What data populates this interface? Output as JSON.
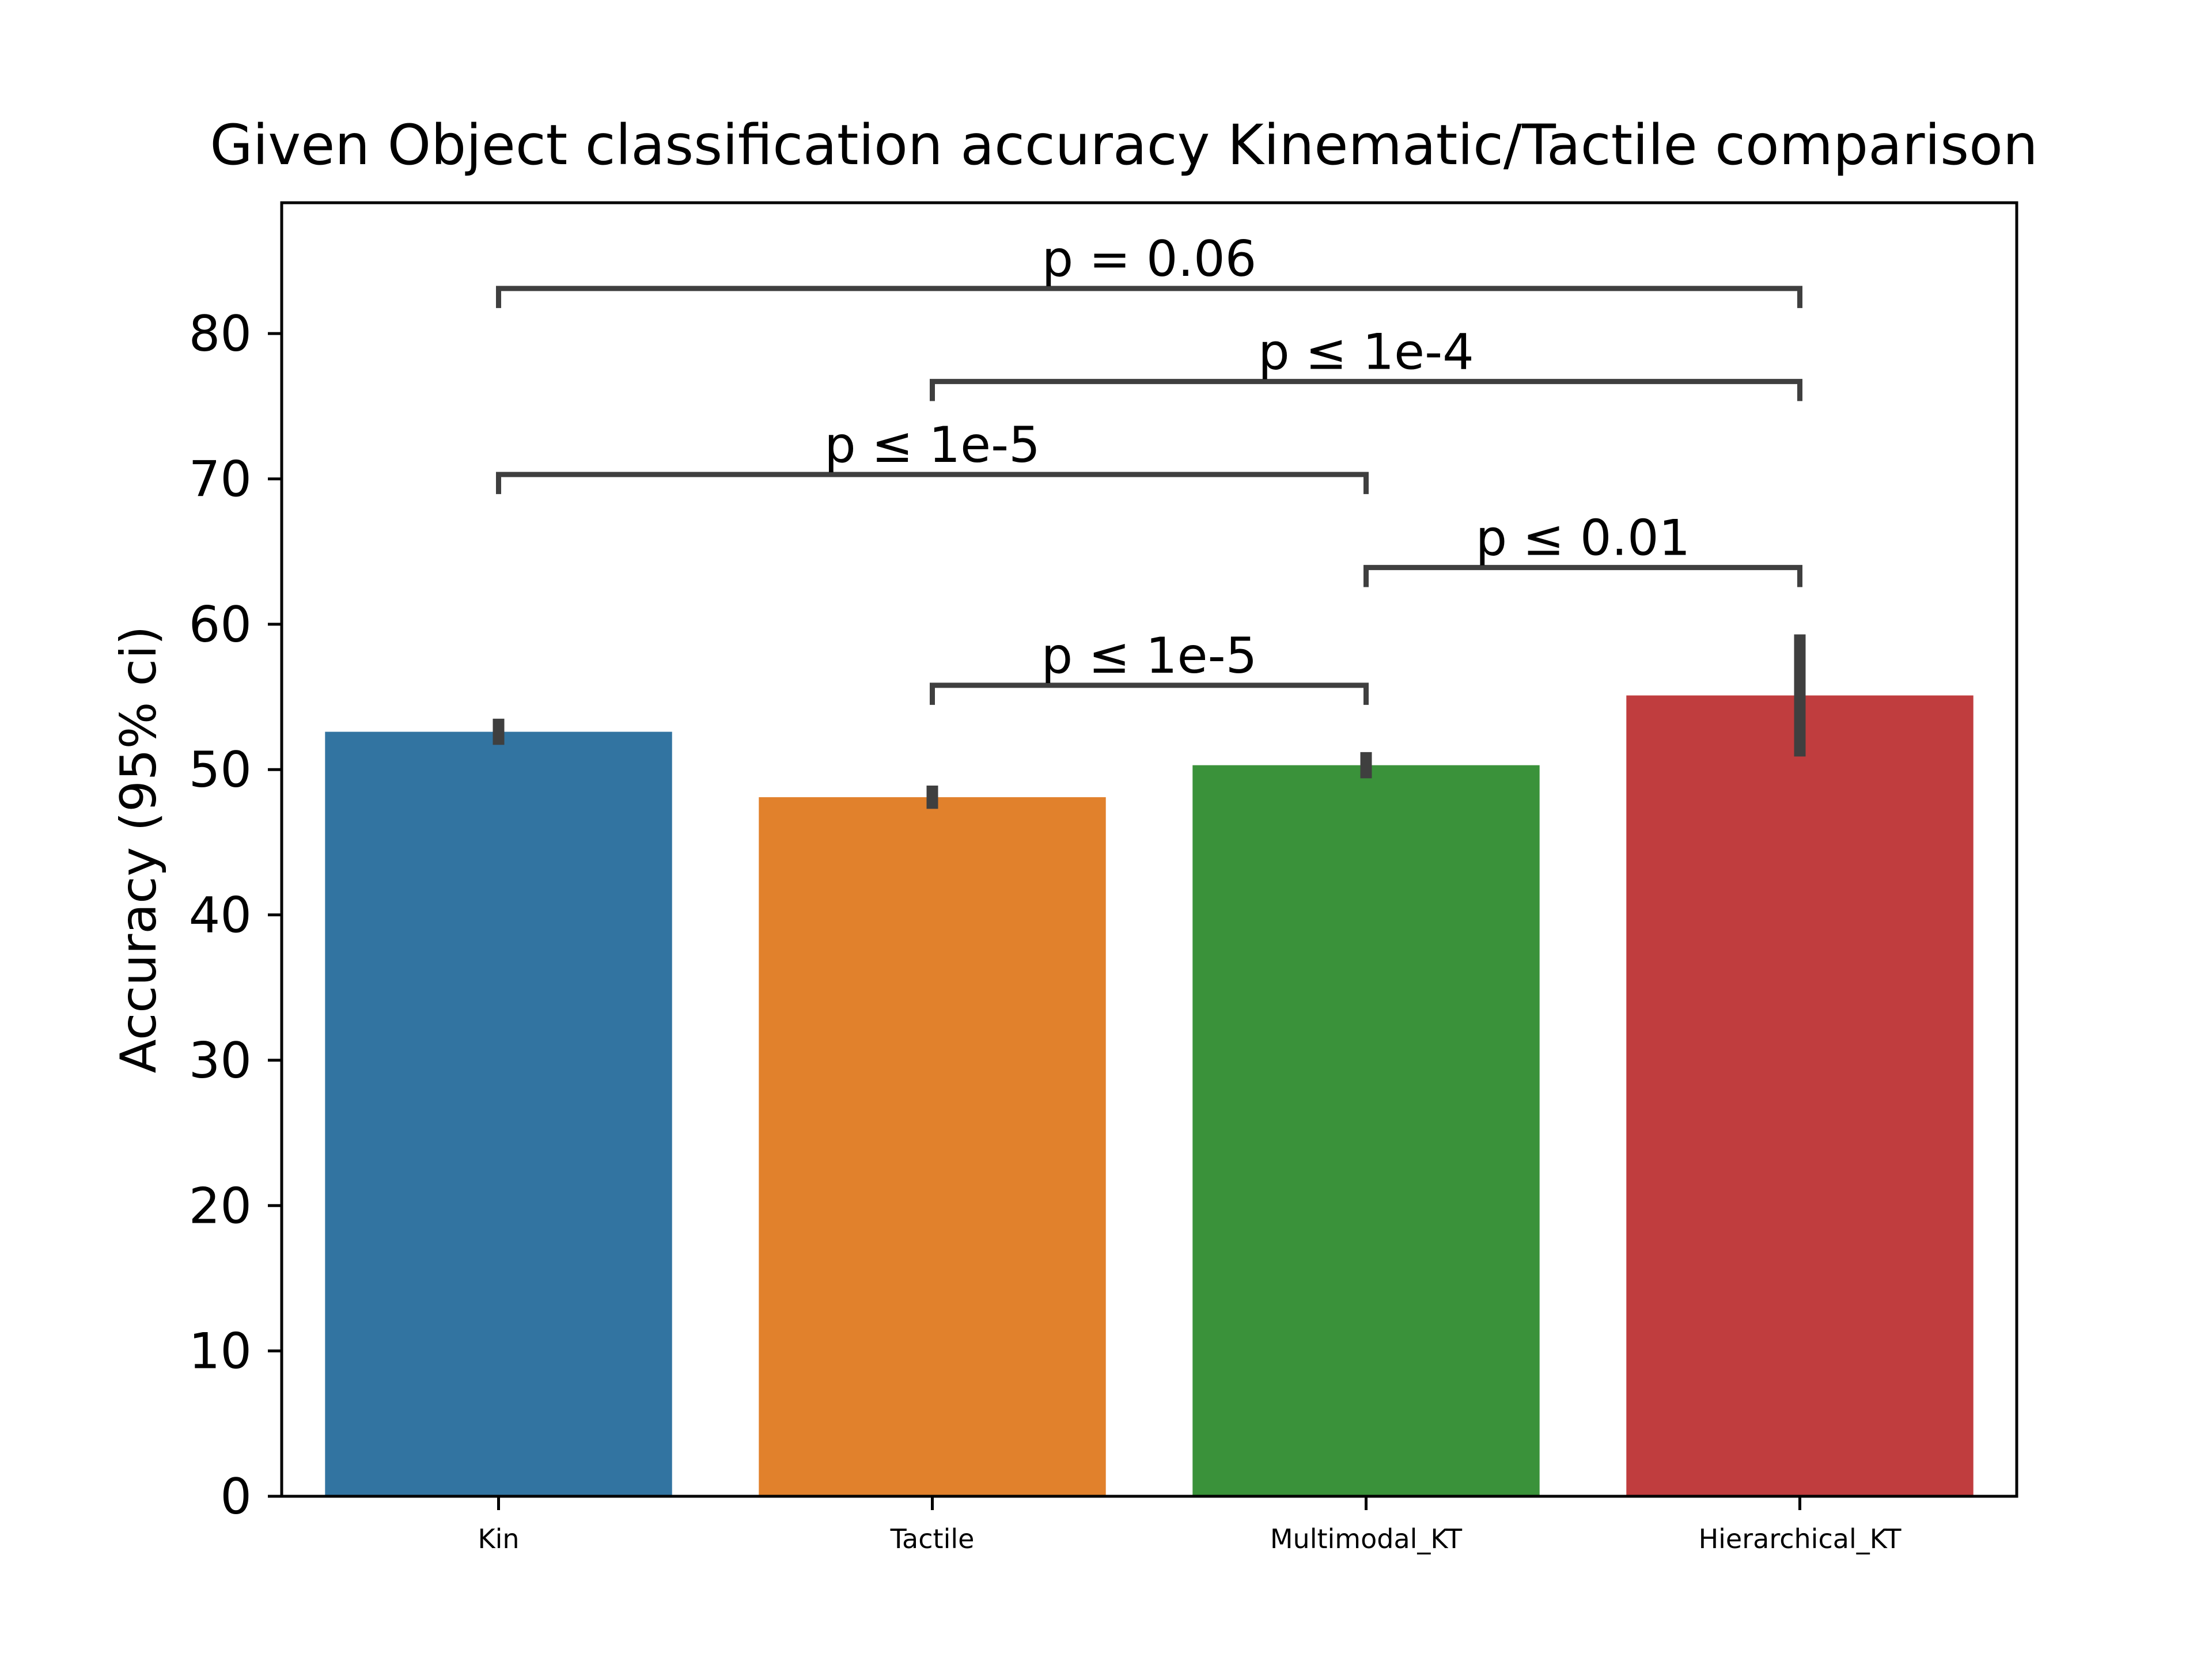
{
  "chart_data": {
    "type": "bar",
    "title": "Given Object classification accuracy Kinematic/Tactile comparison",
    "xlabel": "",
    "ylabel": "Accuracy (95% ci)",
    "ylim": [
      0,
      89
    ],
    "yticks": [
      0,
      10,
      20,
      30,
      40,
      50,
      60,
      70,
      80
    ],
    "grid": false,
    "categories": [
      "Kin",
      "Tactile",
      "Multimodal_KT",
      "Hierarchical_KT"
    ],
    "values": [
      52.6,
      48.1,
      50.3,
      55.1
    ],
    "error_low": [
      51.7,
      47.3,
      49.4,
      50.9
    ],
    "error_high": [
      53.5,
      48.9,
      51.2,
      59.3
    ],
    "colors": [
      "#3274a1",
      "#e1812c",
      "#3a923a",
      "#c03d3e"
    ],
    "annotations": [
      {
        "from": "Tactile",
        "to": "Multimodal_KT",
        "label": "p ≤ 1e-5",
        "y": 55.8
      },
      {
        "from": "Multimodal_KT",
        "to": "Hierarchical_KT",
        "label": "p ≤ 0.01",
        "y": 63.9
      },
      {
        "from": "Kin",
        "to": "Multimodal_KT",
        "label": "p ≤ 1e-5",
        "y": 70.3
      },
      {
        "from": "Tactile",
        "to": "Hierarchical_KT",
        "label": "p ≤ 1e-4",
        "y": 76.7
      },
      {
        "from": "Kin",
        "to": "Hierarchical_KT",
        "label": "p = 0.06",
        "y": 83.1
      }
    ]
  }
}
